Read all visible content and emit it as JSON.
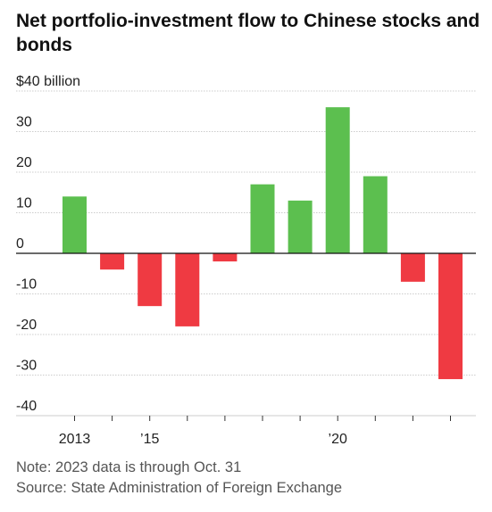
{
  "title": "Net portfolio-investment flow to Chinese stocks and bonds",
  "note": "Note: 2023 data is through Oct. 31",
  "source": "Source: State Administration of Foreign Exchange",
  "colors": {
    "positive": "#5cbf4f",
    "negative": "#ef3a42",
    "grid": "#cccccc",
    "zero": "#111111"
  },
  "chart_data": {
    "type": "bar",
    "categories": [
      "2013",
      "2014",
      "2015",
      "2016",
      "2017",
      "2018",
      "2019",
      "2020",
      "2021",
      "2022",
      "2023"
    ],
    "values": [
      14,
      -4,
      -13,
      -18,
      -2,
      17,
      13,
      36,
      19,
      -7,
      -31
    ],
    "xtick_labels": [
      "2013",
      "",
      "’15",
      "",
      "",
      "",
      "",
      "’20",
      "",
      "",
      ""
    ],
    "ytick_labels": [
      "$40 billion",
      "30",
      "20",
      "10",
      "0",
      "-10",
      "-20",
      "-30",
      "-40"
    ],
    "yticks": [
      40,
      30,
      20,
      10,
      0,
      -10,
      -20,
      -30,
      -40
    ],
    "ylim": [
      -40,
      40
    ],
    "xlabel": "",
    "ylabel": "",
    "grid": true
  }
}
